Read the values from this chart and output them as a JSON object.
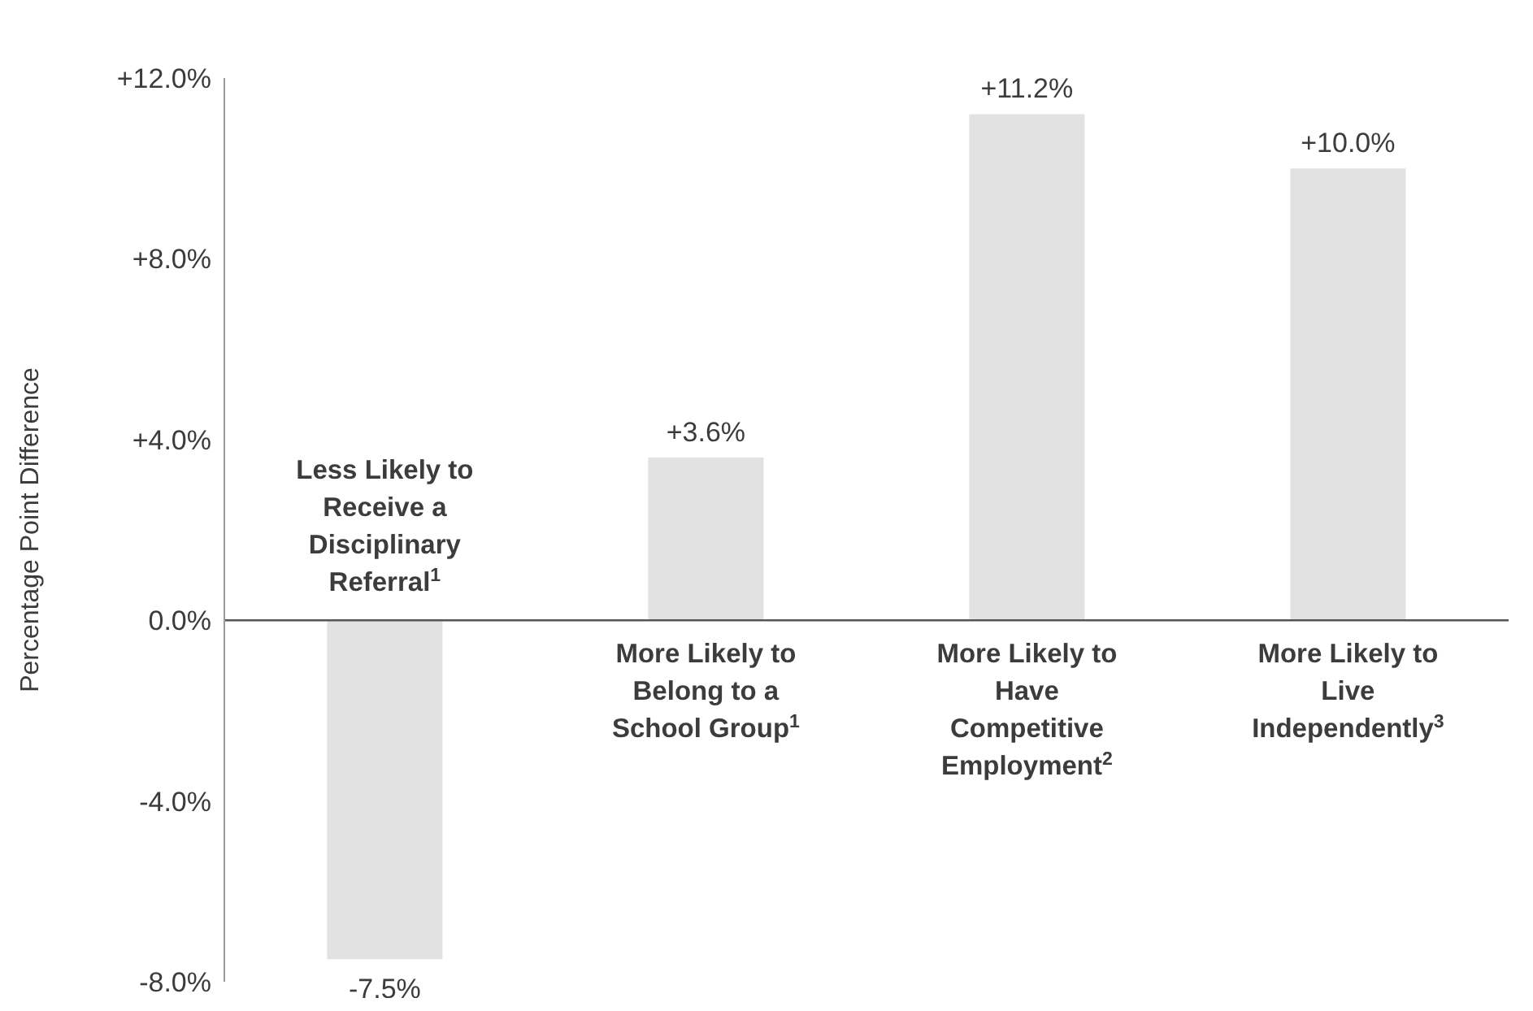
{
  "chart_data": {
    "type": "bar",
    "ylabel": "Percentage Point Difference",
    "categories": [
      "Less Likely to\nReceive a\nDisciplinary\nReferral$^{1}$",
      "More Likely to\nBelong to a\nSchool Group$^{1}$",
      "More Likely to\nHave\nCompetitive\nEmployment$^{2}$",
      "More Likely to\nLive\nIndependently$^{3}$"
    ],
    "values": [
      -7.5,
      3.6,
      11.2,
      10.0
    ],
    "value_labels": [
      "-7.5%",
      "+3.6%",
      "+11.2%",
      "+10.0%"
    ],
    "color": "#e2e2e2",
    "ylim": [
      -8,
      12
    ],
    "yticks": [
      {
        "value": -8,
        "label": "-8.0%"
      },
      {
        "value": -4,
        "label": "-4.0%"
      },
      {
        "value": 0,
        "label": "0.0%"
      },
      {
        "value": 4,
        "label": "+4.0%"
      },
      {
        "value": 8,
        "label": "+8.0%"
      },
      {
        "value": 12,
        "label": "+12.0%"
      }
    ],
    "grid": false,
    "legend": false
  }
}
